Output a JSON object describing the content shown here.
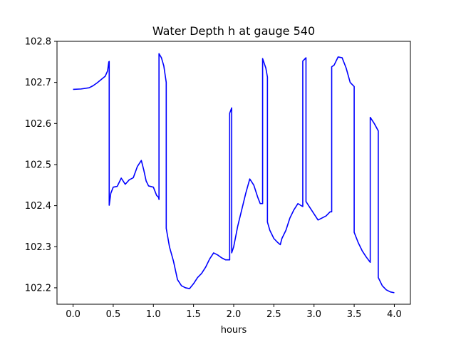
{
  "chart_data": {
    "type": "line",
    "title": "Water Depth h at gauge 540",
    "xlabel": "hours",
    "ylabel": "",
    "xlim": [
      -0.2,
      4.2
    ],
    "ylim": [
      102.16,
      102.8
    ],
    "xticks": [
      "0.0",
      "0.5",
      "1.0",
      "1.5",
      "2.0",
      "2.5",
      "3.0",
      "3.5",
      "4.0"
    ],
    "yticks": [
      "102.2",
      "102.3",
      "102.4",
      "102.5",
      "102.6",
      "102.7",
      "102.8"
    ],
    "grid": false,
    "series": [
      {
        "color": "#0000ff",
        "x": [
          0.0,
          0.1,
          0.2,
          0.25,
          0.3,
          0.35,
          0.4,
          0.43,
          0.445,
          0.45,
          0.45,
          0.47,
          0.5,
          0.55,
          0.6,
          0.65,
          0.7,
          0.75,
          0.8,
          0.85,
          0.88,
          0.91,
          0.94,
          1.0,
          1.04,
          1.065,
          1.07,
          1.07,
          1.1,
          1.13,
          1.16,
          1.16,
          1.2,
          1.25,
          1.3,
          1.35,
          1.4,
          1.45,
          1.5,
          1.55,
          1.6,
          1.65,
          1.7,
          1.75,
          1.8,
          1.85,
          1.9,
          1.95,
          1.95,
          1.975,
          1.975,
          2.0,
          2.05,
          2.1,
          2.15,
          2.2,
          2.25,
          2.3,
          2.33,
          2.36,
          2.36,
          2.4,
          2.42,
          2.42,
          2.45,
          2.5,
          2.55,
          2.58,
          2.6,
          2.65,
          2.7,
          2.75,
          2.8,
          2.84,
          2.86,
          2.86,
          2.9,
          2.9,
          2.95,
          3.0,
          3.05,
          3.1,
          3.15,
          3.2,
          3.22,
          3.22,
          3.25,
          3.3,
          3.35,
          3.4,
          3.45,
          3.5,
          3.5,
          3.55,
          3.6,
          3.65,
          3.7,
          3.7,
          3.75,
          3.8,
          3.8,
          3.85,
          3.9,
          3.95,
          4.0
        ],
        "values": [
          102.683,
          102.684,
          102.687,
          102.692,
          102.699,
          102.707,
          102.715,
          102.728,
          102.75,
          102.751,
          102.401,
          102.43,
          102.445,
          102.447,
          102.467,
          102.452,
          102.463,
          102.468,
          102.495,
          102.51,
          102.487,
          102.46,
          102.448,
          102.445,
          102.425,
          102.42,
          102.415,
          102.77,
          102.76,
          102.74,
          102.7,
          102.345,
          102.3,
          102.265,
          102.22,
          102.205,
          102.2,
          102.198,
          102.21,
          102.225,
          102.235,
          102.25,
          102.27,
          102.285,
          102.28,
          102.273,
          102.268,
          102.268,
          102.625,
          102.638,
          102.285,
          102.3,
          102.35,
          102.39,
          102.43,
          102.465,
          102.45,
          102.42,
          102.405,
          102.405,
          102.758,
          102.735,
          102.713,
          102.36,
          102.34,
          102.32,
          102.31,
          102.305,
          102.32,
          102.34,
          102.37,
          102.39,
          102.405,
          102.4,
          102.398,
          102.752,
          102.76,
          102.41,
          102.395,
          102.38,
          102.365,
          102.37,
          102.375,
          102.385,
          102.385,
          102.738,
          102.742,
          102.762,
          102.76,
          102.735,
          102.7,
          102.69,
          102.335,
          102.31,
          102.29,
          102.275,
          102.262,
          102.615,
          102.6,
          102.582,
          102.225,
          102.205,
          102.195,
          102.19,
          102.188
        ]
      }
    ]
  }
}
